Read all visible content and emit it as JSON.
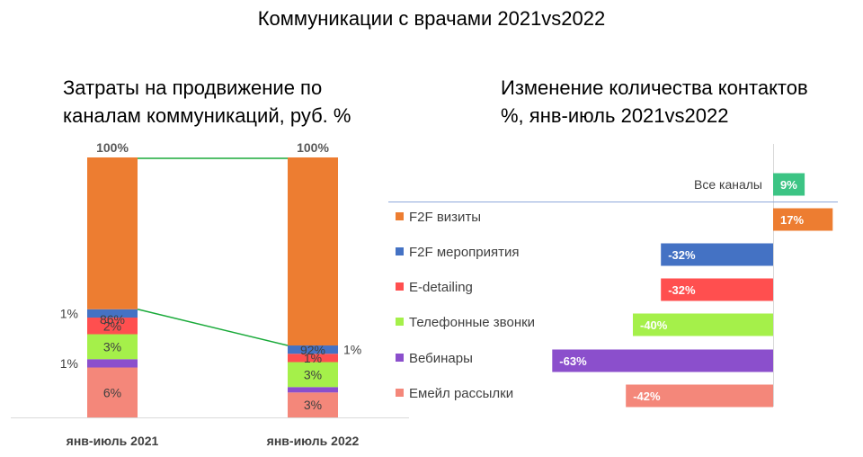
{
  "main_title": "Коммуникации с врачами 2021vs2022",
  "left_title_line1": "Затраты на продвижение по",
  "left_title_line2": "каналам коммуникаций, руб. %",
  "right_title_line1": "Изменение количества контактов",
  "right_title_line2": "%, янв-июль 2021vs2022",
  "colors": {
    "f2f_visits": "#ED7D31",
    "f2f_events": "#4472C4",
    "edetailing": "#FF4F4F",
    "phone": "#A5F04A",
    "webinars": "#8B4FCC",
    "email": "#F4877A",
    "all_channels": "#3CC484",
    "trend_line": "#1AAA3A"
  },
  "chart_data": [
    {
      "type": "bar",
      "stacked": true,
      "categories": [
        "янв-июль 2021",
        "янв-июль 2022"
      ],
      "total_labels": [
        "100%",
        "100%"
      ],
      "series": [
        {
          "name": "Емейл рассылки",
          "values": [
            6,
            3
          ],
          "labels": [
            "6%",
            "3%"
          ]
        },
        {
          "name": "Вебинары",
          "values": [
            1,
            0.3
          ],
          "labels": [
            "1%",
            ""
          ]
        },
        {
          "name": "Телефонные звонки",
          "values": [
            3,
            3
          ],
          "labels": [
            "3%",
            "3%"
          ]
        },
        {
          "name": "E-detailing",
          "values": [
            2,
            1
          ],
          "labels": [
            "2%",
            "1%"
          ]
        },
        {
          "name": "F2F мероприятия",
          "values": [
            1,
            1
          ],
          "labels": [
            "1%",
            "1%"
          ]
        },
        {
          "name": "F2F визиты",
          "values": [
            86,
            92
          ],
          "labels": [
            "86%",
            "92%"
          ]
        }
      ],
      "ylim": [
        0,
        100
      ]
    },
    {
      "type": "bar",
      "orientation": "horizontal",
      "categories": [
        "Все каналы",
        "F2F визиты",
        "F2F мероприятия",
        "E-detailing",
        "Телефонные звонки",
        "Вебинары",
        "Емейл рассылки"
      ],
      "values": [
        9,
        17,
        -32,
        -32,
        -40,
        -63,
        -42
      ],
      "labels": [
        "9%",
        "17%",
        "-32%",
        "-32%",
        "-40%",
        "-63%",
        "-42%"
      ],
      "xlim": [
        -63,
        17
      ]
    }
  ]
}
